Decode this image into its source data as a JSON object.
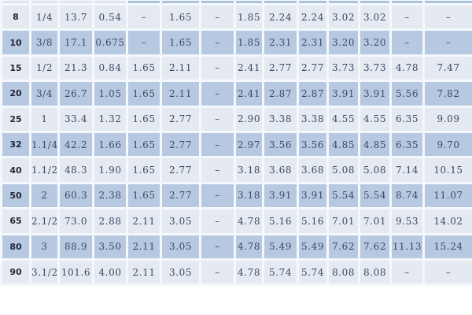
{
  "chart_data": {
    "type": "table",
    "title": "",
    "columns_count": 14,
    "header_row": {
      "visible_text": "",
      "note_cells": [
        "",
        "",
        "",
        "",
        "",
        "",
        "",
        "",
        "",
        "",
        "",
        "",
        "",
        ""
      ]
    },
    "rows": [
      [
        "8",
        "1/4",
        "13.7",
        "0.54",
        "–",
        "1.65",
        "–",
        "1.85",
        "2.24",
        "2.24",
        "3.02",
        "3.02",
        "–",
        "–"
      ],
      [
        "10",
        "3/8",
        "17.1",
        "0.675",
        "–",
        "1.65",
        "–",
        "1.85",
        "2.31",
        "2.31",
        "3.20",
        "3.20",
        "–",
        "–"
      ],
      [
        "15",
        "1/2",
        "21.3",
        "0.84",
        "1.65",
        "2.11",
        "–",
        "2.41",
        "2.77",
        "2.77",
        "3.73",
        "3.73",
        "4.78",
        "7.47"
      ],
      [
        "20",
        "3/4",
        "26.7",
        "1.05",
        "1.65",
        "2.11",
        "–",
        "2.41",
        "2.87",
        "2.87",
        "3.91",
        "3.91",
        "5.56",
        "7.82"
      ],
      [
        "25",
        "1",
        "33.4",
        "1.32",
        "1.65",
        "2.77",
        "–",
        "2.90",
        "3.38",
        "3.38",
        "4.55",
        "4.55",
        "6.35",
        "9.09"
      ],
      [
        "32",
        "1.1/4",
        "42.2",
        "1.66",
        "1.65",
        "2.77",
        "–",
        "2.97",
        "3.56",
        "3.56",
        "4.85",
        "4.85",
        "6.35",
        "9.70"
      ],
      [
        "40",
        "1.1/2",
        "48.3",
        "1.90",
        "1.65",
        "2.77",
        "–",
        "3.18",
        "3.68",
        "3.68",
        "5.08",
        "5.08",
        "7.14",
        "10.15"
      ],
      [
        "50",
        "2",
        "60.3",
        "2.38",
        "1.65",
        "2.77",
        "–",
        "3.18",
        "3.91",
        "3.91",
        "5.54",
        "5.54",
        "8.74",
        "11.07"
      ],
      [
        "65",
        "2.1/2",
        "73.0",
        "2.88",
        "2.11",
        "3.05",
        "–",
        "4.78",
        "5.16",
        "5.16",
        "7.01",
        "7.01",
        "9.53",
        "14.02"
      ],
      [
        "80",
        "3",
        "88.9",
        "3.50",
        "2.11",
        "3.05",
        "–",
        "4.78",
        "5.49",
        "5.49",
        "7.62",
        "7.62",
        "11.13",
        "15.24"
      ],
      [
        "90",
        "3.1/2",
        "101.6",
        "4.00",
        "2.11",
        "3.05",
        "–",
        "4.78",
        "5.74",
        "5.74",
        "8.08",
        "8.08",
        "–",
        "–"
      ]
    ],
    "layout_hints": {
      "striping": "odd rows light, even rows medium blue",
      "header_partial": "only bottom sliver of header row visible at top edge",
      "header_split_after_column": 4
    }
  },
  "colors": {
    "row_light": "#e5eaf2",
    "row_dark": "#b7c9e0",
    "header_light": "#dde5f0",
    "header_dark": "#a9c2dd",
    "border": "#f4f8fc",
    "text": "#3a4a61",
    "text_strong": "#1e2836"
  }
}
